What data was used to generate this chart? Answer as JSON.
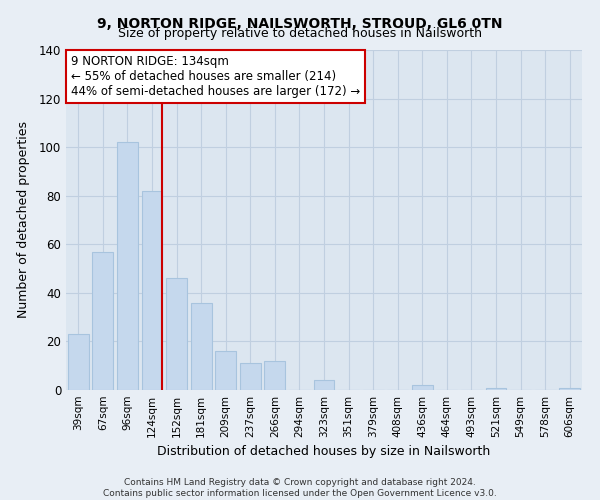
{
  "title": "9, NORTON RIDGE, NAILSWORTH, STROUD, GL6 0TN",
  "subtitle": "Size of property relative to detached houses in Nailsworth",
  "xlabel": "Distribution of detached houses by size in Nailsworth",
  "ylabel": "Number of detached properties",
  "categories": [
    "39sqm",
    "67sqm",
    "96sqm",
    "124sqm",
    "152sqm",
    "181sqm",
    "209sqm",
    "237sqm",
    "266sqm",
    "294sqm",
    "323sqm",
    "351sqm",
    "379sqm",
    "408sqm",
    "436sqm",
    "464sqm",
    "493sqm",
    "521sqm",
    "549sqm",
    "578sqm",
    "606sqm"
  ],
  "values": [
    23,
    57,
    102,
    82,
    46,
    36,
    16,
    11,
    12,
    0,
    4,
    0,
    0,
    0,
    2,
    0,
    0,
    1,
    0,
    0,
    1
  ],
  "bar_color": "#c5d8ed",
  "bar_edge_color": "#a8c4de",
  "highlight_bar_index": 3,
  "highlight_line_color": "#cc0000",
  "ylim": [
    0,
    140
  ],
  "yticks": [
    0,
    20,
    40,
    60,
    80,
    100,
    120,
    140
  ],
  "annotation_title": "9 NORTON RIDGE: 134sqm",
  "annotation_line1": "← 55% of detached houses are smaller (214)",
  "annotation_line2": "44% of semi-detached houses are larger (172) →",
  "annotation_box_color": "#ffffff",
  "annotation_box_edge_color": "#cc0000",
  "footer_line1": "Contains HM Land Registry data © Crown copyright and database right 2024.",
  "footer_line2": "Contains public sector information licensed under the Open Government Licence v3.0.",
  "background_color": "#e8eef5",
  "plot_background_color": "#dce6f0",
  "grid_color": "#c0cfe0",
  "title_fontsize": 10,
  "subtitle_fontsize": 9
}
